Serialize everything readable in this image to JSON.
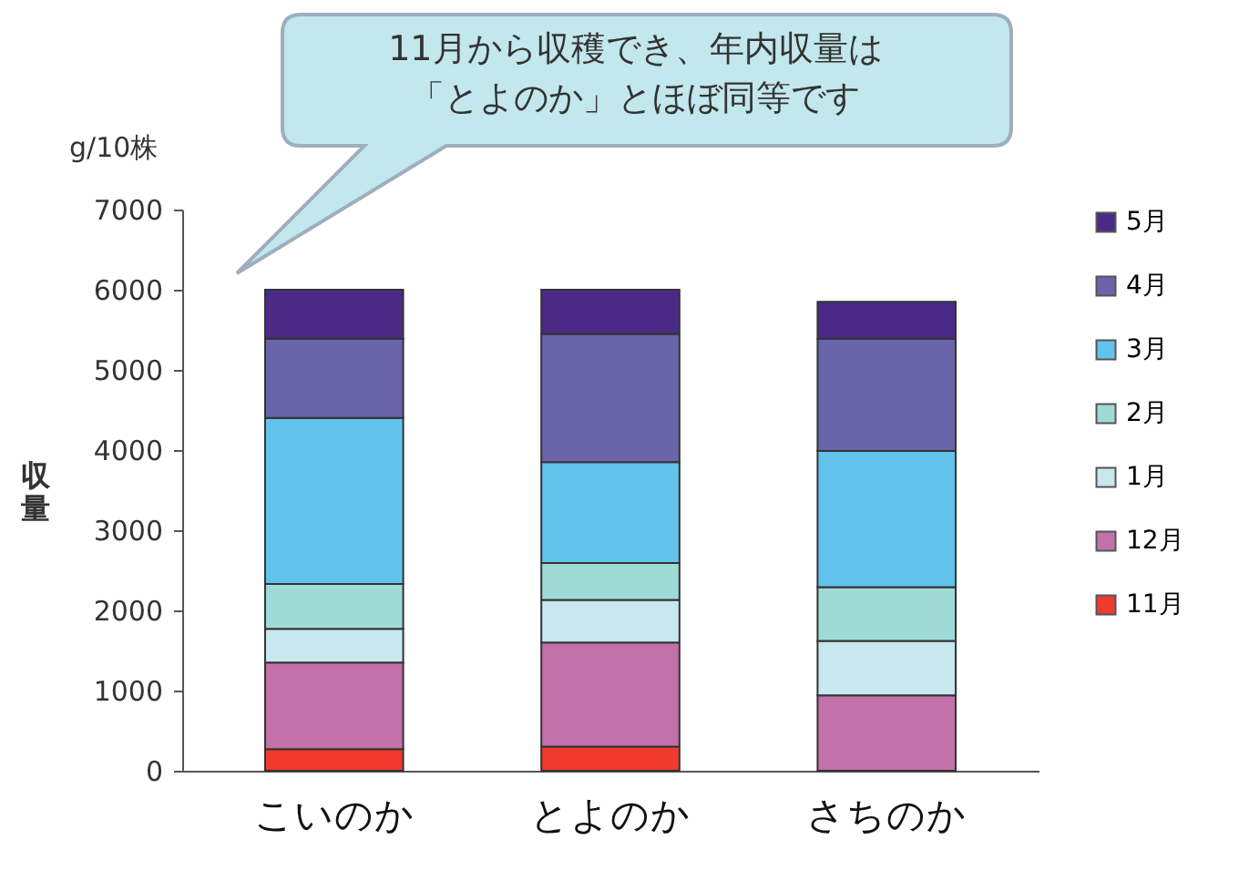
{
  "chart_data": {
    "type": "bar",
    "stacked": true,
    "categories": [
      "こいのか",
      "とよのか",
      "さちのか"
    ],
    "series": [
      {
        "name": "11月",
        "color": "#f03a2e",
        "values": [
          270,
          300,
          0
        ]
      },
      {
        "name": "12月",
        "color": "#c272a8",
        "values": [
          1080,
          1300,
          940
        ]
      },
      {
        "name": "1月",
        "color": "#c6e8ee",
        "values": [
          420,
          530,
          680
        ]
      },
      {
        "name": "2月",
        "color": "#9fdad6",
        "values": [
          560,
          460,
          670
        ]
      },
      {
        "name": "3月",
        "color": "#62c4ec",
        "values": [
          2070,
          1260,
          1700
        ]
      },
      {
        "name": "4月",
        "color": "#6a64aa",
        "values": [
          990,
          1600,
          1400
        ]
      },
      {
        "name": "5月",
        "color": "#4a2a86",
        "values": [
          610,
          550,
          460
        ]
      }
    ],
    "ylabel": "収量",
    "ylim": [
      0,
      7000
    ],
    "yticks": [
      0,
      1000,
      2000,
      3000,
      4000,
      5000,
      6000,
      7000
    ],
    "grid": false,
    "legend": "right",
    "annotations": [
      "11月から収穫でき、年内収量は「とよのか」とほぼ同等です",
      "g/10株"
    ]
  }
}
